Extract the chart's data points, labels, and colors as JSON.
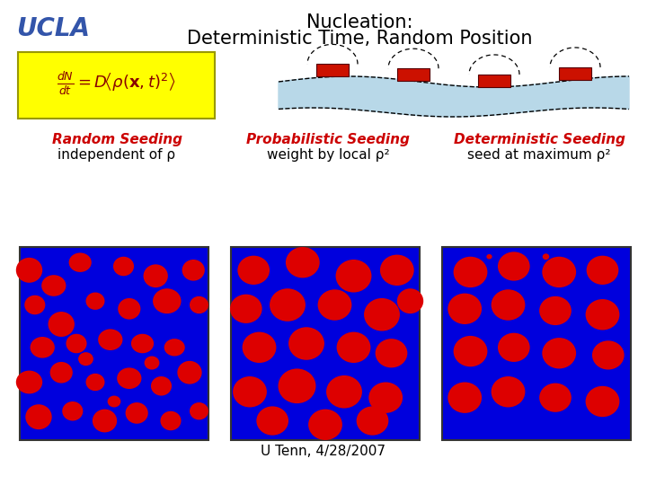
{
  "title_line1": "Nucleation:",
  "title_line2": "Deterministic Time, Random Position",
  "ucla_text": "UCLA",
  "ucla_color": "#3355aa",
  "title_color": "#000000",
  "footer_text": "U Tenn, 4/28/2007",
  "col1_title": "Random Seeding",
  "col1_subtitle": "independent of ρ",
  "col2_title": "Probabilistic Seeding",
  "col2_subtitle": "weight by local ρ²",
  "col3_title": "Deterministic Seeding",
  "col3_subtitle": "seed at maximum ρ²",
  "label_color": "#cc0000",
  "bg_color": "#ffffff",
  "panel_bg": "#0000dd",
  "circle_color": "#dd0000",
  "wave_fill": "#b8d8e8",
  "wave_line": "#000000",
  "dome_fill": "#cc1100",
  "formula_bg": "#ffff00",
  "formula_color": "#880000"
}
